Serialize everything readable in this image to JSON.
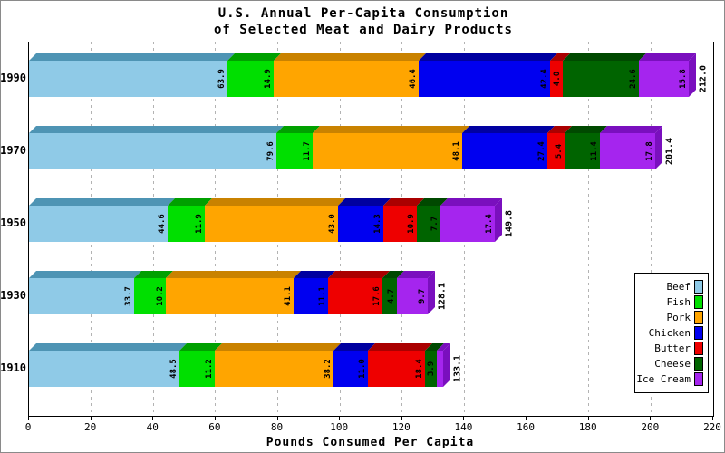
{
  "title": {
    "line1": "U.S. Annual Per-Capita Consumption",
    "line2": "of Selected Meat and Dairy Products"
  },
  "x_axis": {
    "label": "Pounds Consumed Per Capita",
    "ticks": [
      0,
      20,
      40,
      60,
      80,
      100,
      120,
      140,
      160,
      180,
      200,
      220
    ],
    "min": 0,
    "max": 220
  },
  "colors": {
    "background": "#ffffff",
    "frame": "#8a8a8a",
    "axis": "#000000",
    "grid": "#b3b3b3",
    "value_text": "#000000"
  },
  "chart_data": {
    "type": "bar",
    "orientation": "horizontal",
    "stacked": true,
    "grid": "vertical-dashed",
    "legend_position": "right",
    "title": "U.S. Annual Per-Capita Consumption of Selected Meat and Dairy Products",
    "xlabel": "Pounds Consumed Per Capita",
    "xlim": [
      0,
      220
    ],
    "categories": [
      "1990",
      "1970",
      "1950",
      "1930",
      "1910"
    ],
    "series": [
      {
        "name": "Beef",
        "color": "#8FCAE7",
        "dark": "#4E94B4",
        "values": [
          63.9,
          79.6,
          44.6,
          33.7,
          48.5
        ]
      },
      {
        "name": "Fish",
        "color": "#00DF00",
        "dark": "#00A000",
        "values": [
          14.9,
          11.7,
          11.9,
          10.2,
          11.2
        ]
      },
      {
        "name": "Pork",
        "color": "#FFA500",
        "dark": "#C98200",
        "values": [
          46.4,
          48.1,
          43.0,
          41.1,
          38.2
        ]
      },
      {
        "name": "Chicken",
        "color": "#0000F0",
        "dark": "#0000A0",
        "values": [
          42.4,
          27.4,
          14.3,
          11.1,
          11.0
        ]
      },
      {
        "name": "Butter",
        "color": "#EE0000",
        "dark": "#AA0000",
        "values": [
          4.0,
          5.4,
          10.9,
          17.6,
          18.4
        ]
      },
      {
        "name": "Cheese",
        "color": "#006400",
        "dark": "#004900",
        "values": [
          24.6,
          11.4,
          7.7,
          4.7,
          3.9
        ]
      },
      {
        "name": "Ice Cream",
        "color": "#A525EE",
        "dark": "#7A0FBE",
        "values": [
          15.8,
          17.8,
          17.4,
          9.7,
          1.9
        ]
      }
    ],
    "totals": [
      "212.0",
      "201.4",
      "149.8",
      "128.1",
      "133.1"
    ],
    "value_label_min": 2.5
  }
}
